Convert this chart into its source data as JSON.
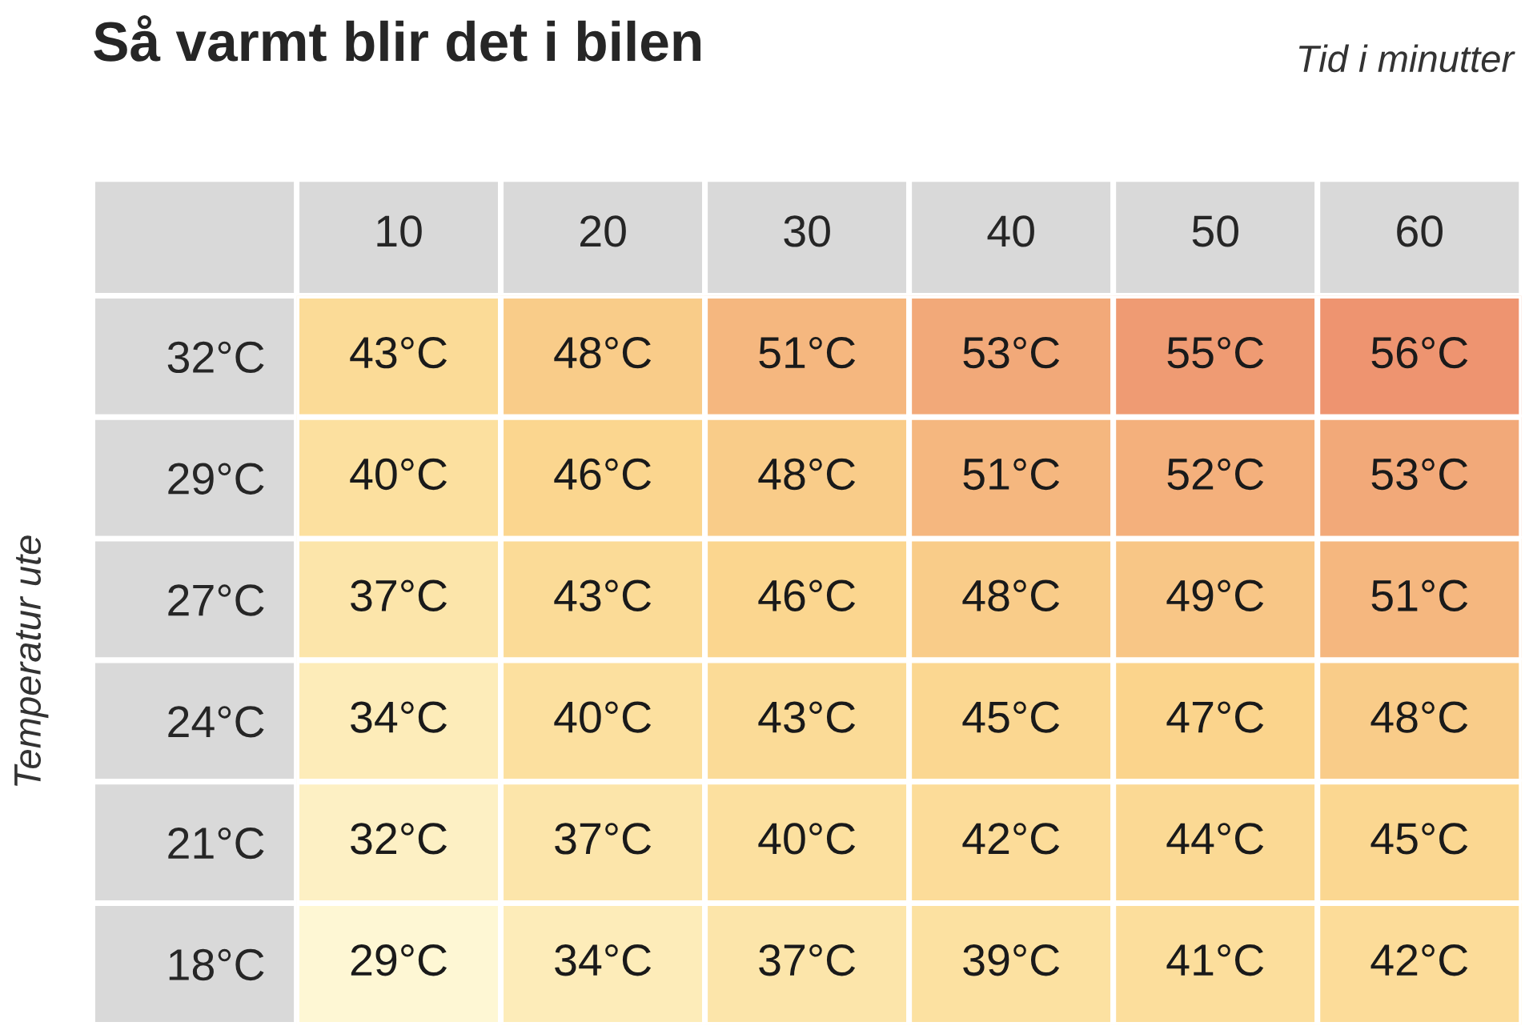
{
  "chart_data": {
    "type": "heatmap",
    "title": "Så varmt blir det i bilen",
    "xlabel": "Tid i minutter",
    "ylabel": "Temperatur ute",
    "categories": [
      "10",
      "20",
      "30",
      "40",
      "50",
      "60"
    ],
    "y_categories": [
      "32°C",
      "29°C",
      "27°C",
      "24°C",
      "21°C",
      "18°C"
    ],
    "cells": [
      [
        43,
        48,
        51,
        53,
        55,
        56
      ],
      [
        40,
        46,
        48,
        51,
        52,
        53
      ],
      [
        37,
        43,
        46,
        48,
        49,
        51
      ],
      [
        34,
        40,
        43,
        45,
        47,
        48
      ],
      [
        32,
        37,
        40,
        42,
        44,
        45
      ],
      [
        29,
        34,
        37,
        39,
        41,
        42
      ]
    ],
    "cell_labels": [
      [
        "43°C",
        "48°C",
        "51°C",
        "53°C",
        "55°C",
        "56°C"
      ],
      [
        "40°C",
        "46°C",
        "48°C",
        "51°C",
        "52°C",
        "53°C"
      ],
      [
        "37°C",
        "43°C",
        "46°C",
        "48°C",
        "49°C",
        "51°C"
      ],
      [
        "34°C",
        "40°C",
        "43°C",
        "45°C",
        "47°C",
        "48°C"
      ],
      [
        "32°C",
        "37°C",
        "40°C",
        "42°C",
        "44°C",
        "45°C"
      ],
      [
        "29°C",
        "34°C",
        "37°C",
        "39°C",
        "41°C",
        "42°C"
      ]
    ],
    "colors": [
      "#fef7d4",
      "#fce3a4",
      "#fbd48c",
      "#ee9470"
    ]
  }
}
